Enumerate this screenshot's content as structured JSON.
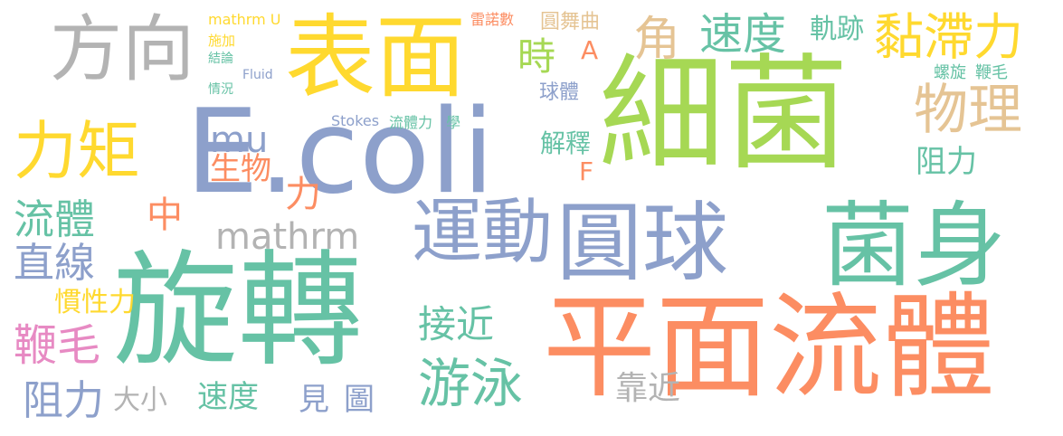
{
  "palette": {
    "green": "#66c2a5",
    "orange": "#fc8d62",
    "blue": "#8da0cb",
    "pink": "#e78ac3",
    "lime": "#a6d854",
    "yellow": "#ffd92f",
    "tan": "#e5c494",
    "gray": "#b3b3b3"
  },
  "words": [
    "細菌",
    "E.coli",
    "旋轉",
    "平面流體",
    "表面",
    "運動",
    "圓球",
    "菌身",
    "方向",
    "力矩",
    "速度",
    "黏滯力",
    "物理",
    "游泳",
    "流體",
    "直線",
    "鞭毛",
    "阻力",
    "接近",
    "mathrm",
    "角",
    "時",
    "軌跡",
    "圓舞曲",
    "球體",
    "解釋",
    "阻力",
    "F",
    "mu",
    "生物",
    "中",
    "力",
    "慣性力",
    "大小",
    "速度",
    "見",
    "圖",
    "靠近",
    "螺旋",
    "鞭毛",
    "mathrm U",
    "Fluid",
    "Stokes",
    "流體力",
    "學",
    "施加",
    "結論",
    "情況",
    "雷諾數",
    "A"
  ]
}
